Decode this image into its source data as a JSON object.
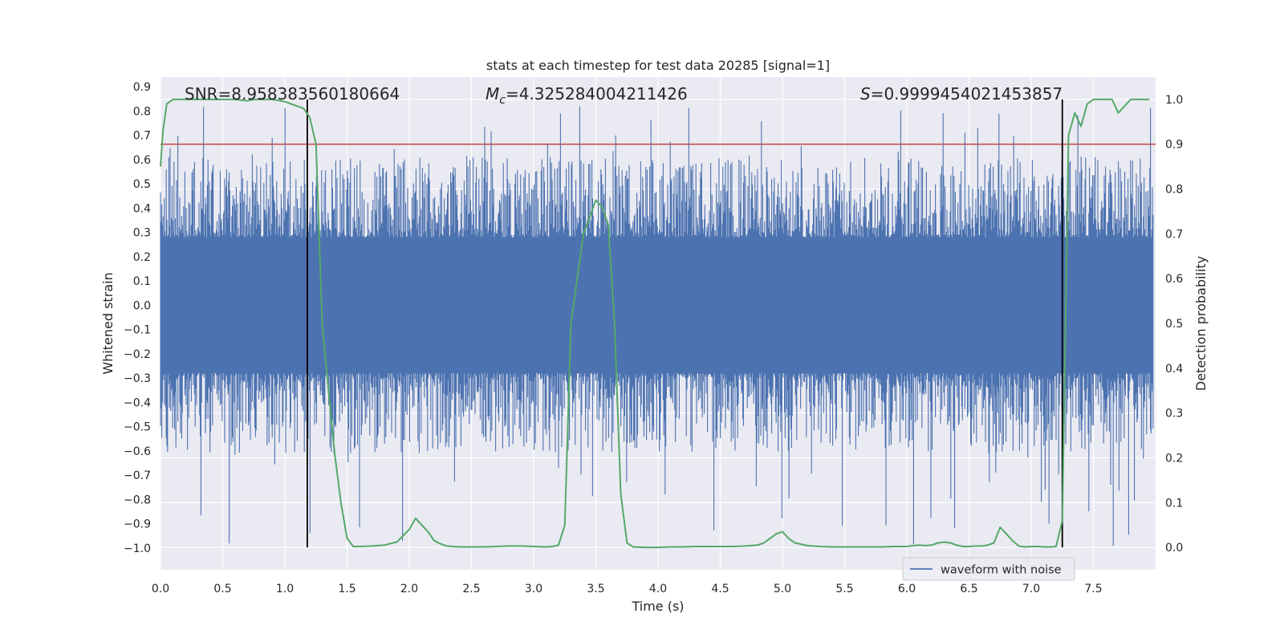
{
  "chart_data": {
    "type": "line",
    "title": "stats at each timestep for test data 20285 [signal=1]",
    "xlabel": "Time (s)",
    "ylabel": "Whitened strain",
    "y2label": "Detection probability",
    "xlim": [
      0.0,
      8.0
    ],
    "ylim": [
      -1.09,
      0.94
    ],
    "y2lim": [
      -0.05,
      1.05
    ],
    "x_ticks": [
      "0.0",
      "0.5",
      "1.0",
      "1.5",
      "2.0",
      "2.5",
      "3.0",
      "3.5",
      "4.0",
      "4.5",
      "5.0",
      "5.5",
      "6.0",
      "6.5",
      "7.0",
      "7.5"
    ],
    "y_ticks": [
      "0.9",
      "0.8",
      "0.7",
      "0.6",
      "0.5",
      "0.4",
      "0.3",
      "0.2",
      "0.1",
      "0.0",
      "−0.1",
      "−0.2",
      "−0.3",
      "−0.4",
      "−0.5",
      "−0.6",
      "−0.7",
      "−0.8",
      "−0.9",
      "−1.0"
    ],
    "y2_ticks": [
      "1.0",
      "0.9",
      "0.8",
      "0.7",
      "0.6",
      "0.5",
      "0.4",
      "0.3",
      "0.2",
      "0.1",
      "0.0"
    ],
    "annotations": {
      "snr": "SNR=8.958383560180664",
      "mc_symbol": "M",
      "mc_sub": "c",
      "mc_value": "=4.325284004211426",
      "s_symbol": "S",
      "s_value": "=0.9999454021453857"
    },
    "legend": {
      "entries": [
        "waveform with noise"
      ],
      "loc": "lower-right"
    },
    "threshold_prob": 0.9,
    "signal_markers": [
      1.18,
      7.25
    ],
    "waveform": {
      "name": "waveform with noise",
      "color": "#4c72b0",
      "x_start": 0.0,
      "x_end": 7.98,
      "typical_abs": 0.28,
      "spike_max": 0.83,
      "spike_min": -1.0
    },
    "detection_probability": {
      "color": "#55a868",
      "x": [
        0.0,
        0.02,
        0.05,
        0.1,
        0.2,
        0.3,
        0.4,
        0.5,
        0.6,
        0.7,
        0.75,
        0.8,
        0.9,
        1.0,
        1.05,
        1.1,
        1.15,
        1.2,
        1.25,
        1.3,
        1.35,
        1.4,
        1.45,
        1.5,
        1.55,
        1.6,
        1.7,
        1.8,
        1.9,
        2.0,
        2.05,
        2.1,
        2.15,
        2.2,
        2.25,
        2.3,
        2.4,
        2.5,
        2.6,
        2.7,
        2.8,
        2.9,
        3.0,
        3.1,
        3.15,
        3.2,
        3.25,
        3.3,
        3.4,
        3.5,
        3.55,
        3.6,
        3.65,
        3.7,
        3.75,
        3.8,
        3.9,
        4.0,
        4.1,
        4.2,
        4.3,
        4.4,
        4.5,
        4.6,
        4.7,
        4.8,
        4.85,
        4.9,
        4.95,
        5.0,
        5.05,
        5.1,
        5.2,
        5.3,
        5.4,
        5.5,
        5.6,
        5.7,
        5.8,
        5.9,
        6.0,
        6.05,
        6.1,
        6.15,
        6.2,
        6.25,
        6.3,
        6.35,
        6.4,
        6.45,
        6.5,
        6.55,
        6.6,
        6.65,
        6.7,
        6.75,
        6.8,
        6.85,
        6.9,
        6.95,
        7.0,
        7.05,
        7.1,
        7.15,
        7.2,
        7.25,
        7.3,
        7.35,
        7.4,
        7.45,
        7.5,
        7.55,
        7.6,
        7.65,
        7.7,
        7.75,
        7.8,
        7.85,
        7.9,
        7.95
      ],
      "y": [
        0.85,
        0.93,
        0.99,
        1.0,
        1.0,
        1.0,
        1.0,
        1.0,
        1.0,
        0.997,
        1.0,
        1.0,
        1.0,
        0.995,
        0.99,
        0.985,
        0.98,
        0.96,
        0.9,
        0.5,
        0.35,
        0.21,
        0.1,
        0.02,
        0.002,
        0.002,
        0.003,
        0.005,
        0.012,
        0.04,
        0.065,
        0.05,
        0.035,
        0.015,
        0.008,
        0.003,
        0.001,
        0.001,
        0.001,
        0.002,
        0.003,
        0.003,
        0.002,
        0.001,
        0.002,
        0.005,
        0.05,
        0.5,
        0.7,
        0.775,
        0.76,
        0.72,
        0.5,
        0.12,
        0.01,
        0.001,
        0.0,
        0.0,
        0.001,
        0.001,
        0.002,
        0.002,
        0.002,
        0.002,
        0.003,
        0.005,
        0.01,
        0.02,
        0.03,
        0.035,
        0.02,
        0.01,
        0.004,
        0.002,
        0.001,
        0.001,
        0.001,
        0.001,
        0.001,
        0.002,
        0.002,
        0.004,
        0.005,
        0.004,
        0.005,
        0.01,
        0.012,
        0.01,
        0.005,
        0.002,
        0.002,
        0.003,
        0.003,
        0.005,
        0.01,
        0.045,
        0.03,
        0.015,
        0.003,
        0.001,
        0.002,
        0.002,
        0.001,
        0.001,
        0.002,
        0.06,
        0.92,
        0.97,
        0.94,
        0.99,
        1.0,
        1.0,
        1.0,
        1.0,
        0.97,
        0.985,
        1.0,
        1.0,
        1.0,
        1.0
      ]
    }
  }
}
